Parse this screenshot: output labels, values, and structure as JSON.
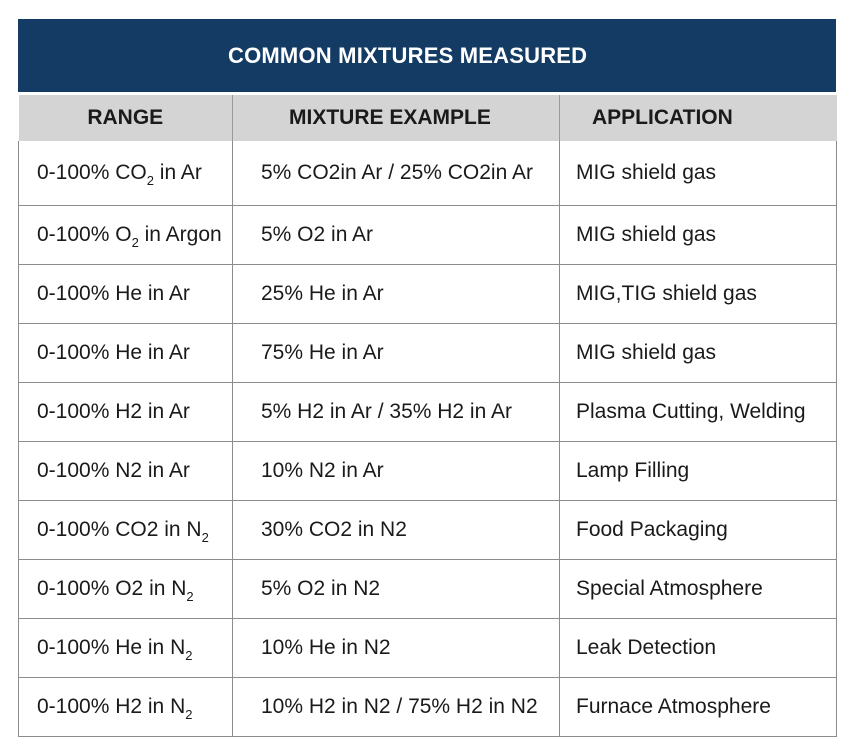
{
  "title": "COMMON MIXTURES MEASURED",
  "headers": {
    "range": "RANGE",
    "mixture": "MIXTURE EXAMPLE",
    "application": "APPLICATION"
  },
  "rows": [
    {
      "range_main": "0-100% CO",
      "range_sub": "2",
      "range_tail": " in Ar",
      "mixture": "5% CO2in Ar  / 25% CO2in Ar",
      "application": "MIG shield gas"
    },
    {
      "range_main": "0-100% O",
      "range_sub": "2",
      "range_tail": " in Argon",
      "mixture": "5% O2 in Ar",
      "application": "MIG shield gas"
    },
    {
      "range_main": "0-100% He in Ar",
      "range_sub": "",
      "range_tail": "",
      "mixture": "25% He in Ar",
      "application": "MIG,TIG shield gas"
    },
    {
      "range_main": "0-100% He in Ar",
      "range_sub": "",
      "range_tail": "",
      "mixture": "75% He in Ar",
      "application": "MIG shield gas"
    },
    {
      "range_main": "0-100% H2 in Ar",
      "range_sub": "",
      "range_tail": "",
      "mixture": "5% H2 in Ar / 35% H2 in Ar",
      "application": "Plasma Cutting, Welding"
    },
    {
      "range_main": "0-100% N2 in Ar",
      "range_sub": "",
      "range_tail": "",
      "mixture": "10% N2 in Ar",
      "application": "Lamp Filling"
    },
    {
      "range_main": "0-100% CO2 in N",
      "range_sub": "2",
      "range_tail": "",
      "mixture": "30% CO2 in N2",
      "application": "Food Packaging"
    },
    {
      "range_main": "0-100% O2 in N",
      "range_sub": "2",
      "range_tail": "",
      "mixture": "5% O2 in N2",
      "application": "Special Atmosphere"
    },
    {
      "range_main": "0-100% He in N",
      "range_sub": "2",
      "range_tail": "",
      "mixture": "10% He in N2",
      "application": "Leak Detection"
    },
    {
      "range_main": "0-100% H2 in N",
      "range_sub": "2",
      "range_tail": "",
      "mixture": "10% H2 in N2  / 75% H2 in N2",
      "application": "Furnace Atmosphere"
    }
  ],
  "colors": {
    "title_bg": "#133b63",
    "header_bg": "#d4d4d4",
    "grid": "#8c8c8c"
  }
}
